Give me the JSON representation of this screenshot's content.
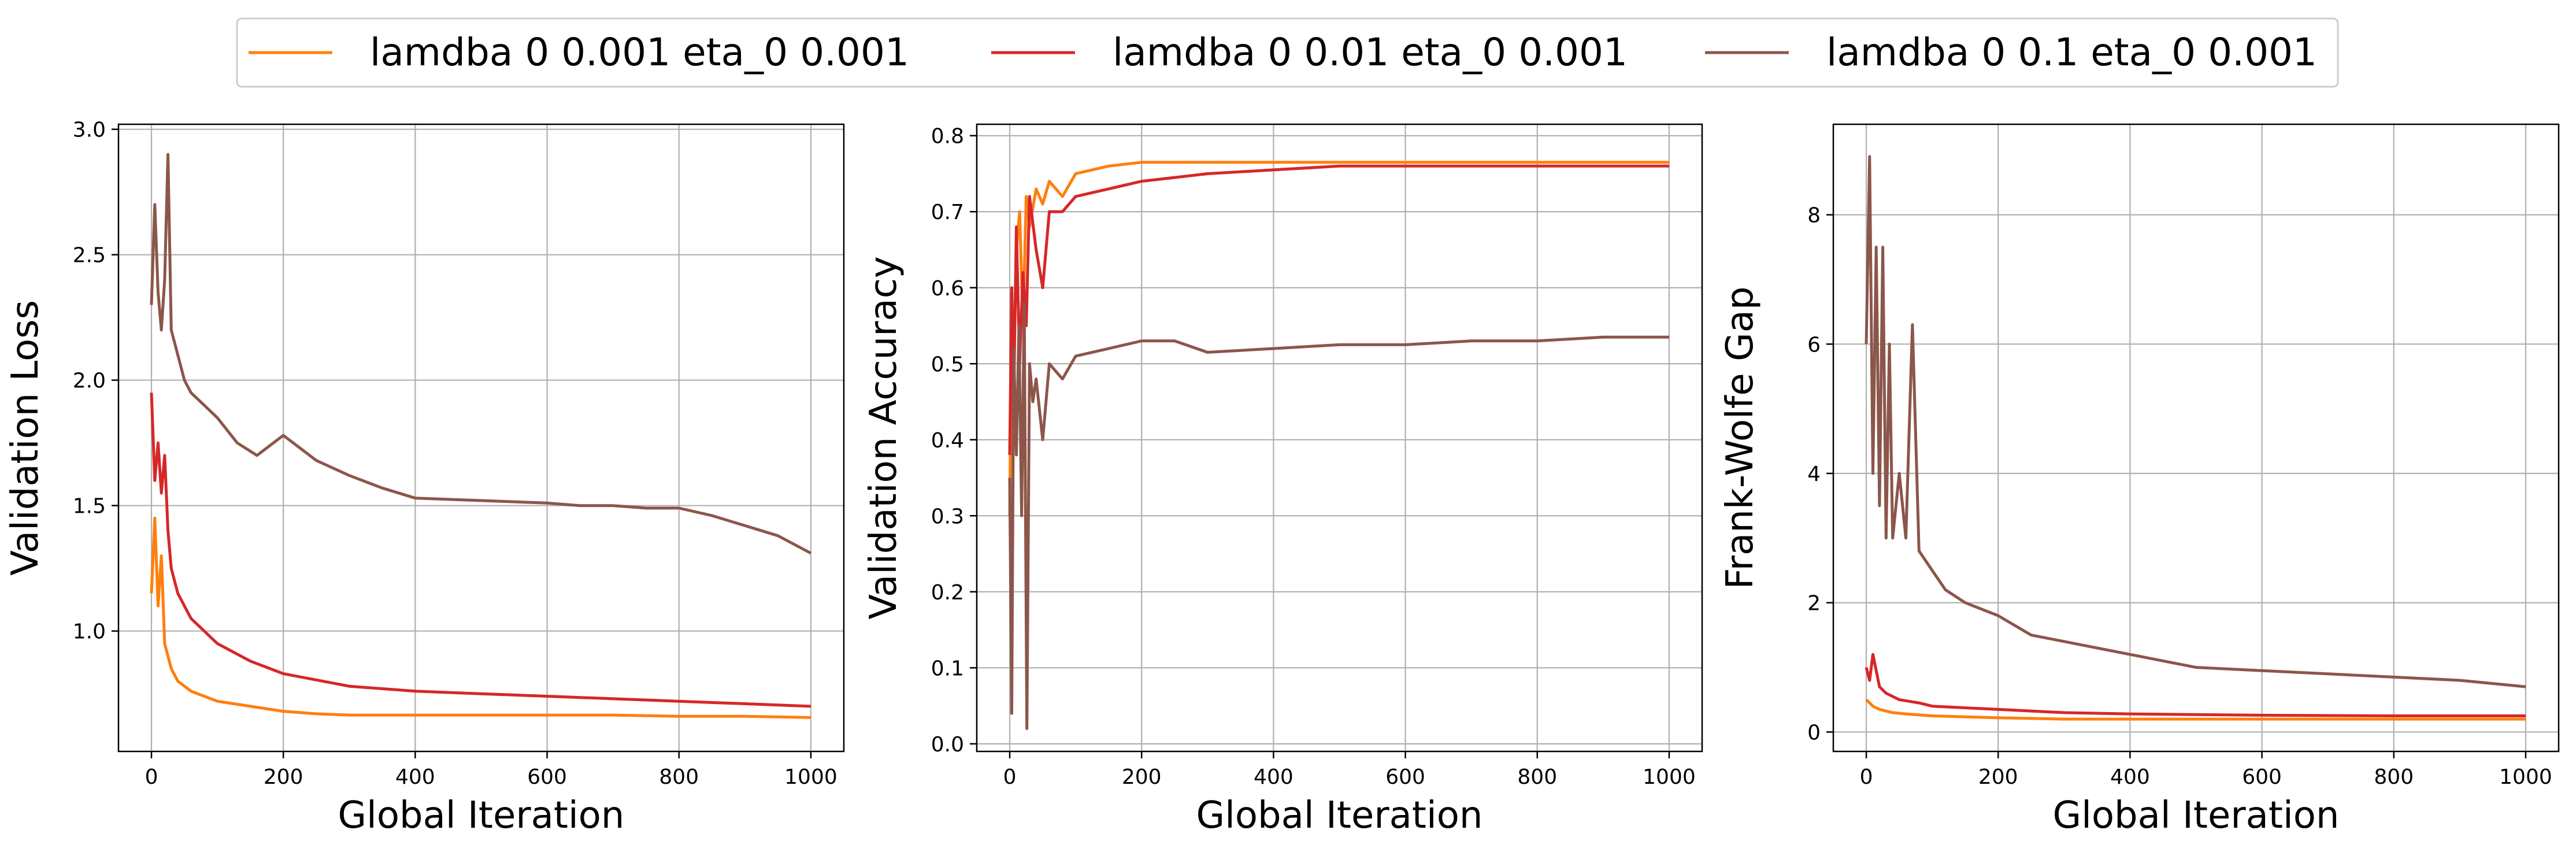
{
  "legend": [
    {
      "label": "lamdba 0 0.001 eta_0 0.001",
      "color": "#ff7f0e"
    },
    {
      "label": "lamdba 0 0.01 eta_0 0.001",
      "color": "#d62728"
    },
    {
      "label": "lamdba 0 0.1 eta_0 0.001",
      "color": "#8c564b"
    }
  ],
  "chart_data": [
    {
      "type": "line",
      "title": "",
      "xlabel": "Global Iteration",
      "ylabel": "Validation Loss",
      "xlim": [
        -50,
        1050
      ],
      "ylim": [
        0.52,
        3.02
      ],
      "xticks": [
        0,
        200,
        400,
        600,
        800,
        1000
      ],
      "xtick_labels": [
        "0",
        "200",
        "400",
        "600",
        "800",
        "1000"
      ],
      "yticks": [
        1.0,
        1.5,
        2.0,
        2.5,
        3.0
      ],
      "ytick_labels": [
        "1.0",
        "1.5",
        "2.0",
        "2.5",
        "3.0"
      ],
      "grid": true,
      "series": [
        {
          "name": "lamdba 0 0.001 eta_0 0.001",
          "color": "#ff7f0e",
          "x": [
            0,
            5,
            10,
            15,
            20,
            30,
            40,
            60,
            80,
            100,
            150,
            200,
            250,
            300,
            400,
            500,
            600,
            700,
            800,
            900,
            1000
          ],
          "y": [
            1.15,
            1.45,
            1.1,
            1.3,
            0.95,
            0.85,
            0.8,
            0.76,
            0.74,
            0.72,
            0.7,
            0.68,
            0.67,
            0.665,
            0.665,
            0.665,
            0.665,
            0.665,
            0.66,
            0.66,
            0.655
          ]
        },
        {
          "name": "lamdba 0 0.01 eta_0 0.001",
          "color": "#d62728",
          "x": [
            0,
            5,
            10,
            15,
            20,
            25,
            30,
            40,
            50,
            60,
            80,
            100,
            150,
            200,
            300,
            400,
            500,
            600,
            700,
            800,
            900,
            1000
          ],
          "y": [
            1.95,
            1.6,
            1.75,
            1.55,
            1.7,
            1.4,
            1.25,
            1.15,
            1.1,
            1.05,
            1.0,
            0.95,
            0.88,
            0.83,
            0.78,
            0.76,
            0.75,
            0.74,
            0.73,
            0.72,
            0.71,
            0.7
          ]
        },
        {
          "name": "lamdba 0 0.1 eta_0 0.001",
          "color": "#8c564b",
          "x": [
            0,
            5,
            10,
            15,
            20,
            25,
            30,
            40,
            50,
            60,
            80,
            100,
            130,
            160,
            200,
            250,
            300,
            350,
            400,
            500,
            600,
            650,
            700,
            750,
            800,
            850,
            900,
            950,
            1000
          ],
          "y": [
            2.3,
            2.7,
            2.35,
            2.2,
            2.4,
            2.9,
            2.2,
            2.1,
            2.0,
            1.95,
            1.9,
            1.85,
            1.75,
            1.7,
            1.78,
            1.68,
            1.62,
            1.57,
            1.53,
            1.52,
            1.51,
            1.5,
            1.5,
            1.49,
            1.49,
            1.46,
            1.42,
            1.38,
            1.31
          ]
        }
      ]
    },
    {
      "type": "line",
      "title": "",
      "xlabel": "Global Iteration",
      "ylabel": "Validation Accuracy",
      "xlim": [
        -50,
        1050
      ],
      "ylim": [
        -0.01,
        0.815
      ],
      "xticks": [
        0,
        200,
        400,
        600,
        800,
        1000
      ],
      "xtick_labels": [
        "0",
        "200",
        "400",
        "600",
        "800",
        "1000"
      ],
      "yticks": [
        0.0,
        0.1,
        0.2,
        0.3,
        0.4,
        0.5,
        0.6,
        0.7,
        0.8
      ],
      "ytick_labels": [
        "0.0",
        "0.1",
        "0.2",
        "0.3",
        "0.4",
        "0.5",
        "0.6",
        "0.7",
        "0.8"
      ],
      "grid": true,
      "series": [
        {
          "name": "lamdba 0 0.001 eta_0 0.001",
          "color": "#ff7f0e",
          "x": [
            0,
            3,
            6,
            10,
            15,
            20,
            25,
            30,
            40,
            50,
            60,
            80,
            100,
            150,
            200,
            300,
            400,
            500,
            600,
            700,
            800,
            900,
            1000
          ],
          "y": [
            0.3,
            0.58,
            0.5,
            0.65,
            0.7,
            0.55,
            0.72,
            0.68,
            0.73,
            0.71,
            0.74,
            0.72,
            0.75,
            0.76,
            0.765,
            0.765,
            0.765,
            0.765,
            0.765,
            0.765,
            0.765,
            0.765,
            0.765
          ]
        },
        {
          "name": "lamdba 0 0.01 eta_0 0.001",
          "color": "#d62728",
          "x": [
            0,
            3,
            6,
            10,
            15,
            20,
            25,
            30,
            40,
            50,
            60,
            80,
            100,
            150,
            200,
            250,
            300,
            400,
            500,
            600,
            700,
            800,
            900,
            1000
          ],
          "y": [
            0.38,
            0.6,
            0.45,
            0.68,
            0.5,
            0.62,
            0.55,
            0.72,
            0.65,
            0.6,
            0.7,
            0.7,
            0.72,
            0.73,
            0.74,
            0.745,
            0.75,
            0.755,
            0.76,
            0.76,
            0.76,
            0.76,
            0.76,
            0.76
          ]
        },
        {
          "name": "lamdba 0 0.1 eta_0 0.001",
          "color": "#8c564b",
          "x": [
            0,
            3,
            6,
            10,
            14,
            18,
            22,
            26,
            30,
            35,
            40,
            50,
            60,
            80,
            100,
            150,
            200,
            250,
            300,
            400,
            500,
            600,
            700,
            800,
            900,
            1000
          ],
          "y": [
            0.35,
            0.04,
            0.52,
            0.38,
            0.55,
            0.3,
            0.58,
            0.02,
            0.5,
            0.45,
            0.48,
            0.4,
            0.5,
            0.48,
            0.51,
            0.52,
            0.53,
            0.53,
            0.515,
            0.52,
            0.525,
            0.525,
            0.53,
            0.53,
            0.535,
            0.535
          ]
        }
      ]
    },
    {
      "type": "line",
      "title": "",
      "xlabel": "Global Iteration",
      "ylabel": "Frank-Wolfe Gap",
      "xlim": [
        -50,
        1050
      ],
      "ylim": [
        -0.3,
        9.4
      ],
      "xticks": [
        0,
        200,
        400,
        600,
        800,
        1000
      ],
      "xtick_labels": [
        "0",
        "200",
        "400",
        "600",
        "800",
        "1000"
      ],
      "yticks": [
        0,
        2,
        4,
        6,
        8
      ],
      "ytick_labels": [
        "0",
        "2",
        "4",
        "6",
        "8"
      ],
      "grid": true,
      "series": [
        {
          "name": "lamdba 0 0.001 eta_0 0.001",
          "color": "#ff7f0e",
          "x": [
            0,
            10,
            20,
            40,
            60,
            100,
            200,
            300,
            400,
            600,
            800,
            1000
          ],
          "y": [
            0.5,
            0.4,
            0.35,
            0.3,
            0.28,
            0.25,
            0.22,
            0.2,
            0.2,
            0.2,
            0.2,
            0.2
          ]
        },
        {
          "name": "lamdba 0 0.01 eta_0 0.001",
          "color": "#d62728",
          "x": [
            0,
            5,
            10,
            20,
            30,
            50,
            80,
            100,
            200,
            300,
            400,
            600,
            800,
            1000
          ],
          "y": [
            1.0,
            0.8,
            1.2,
            0.7,
            0.6,
            0.5,
            0.45,
            0.4,
            0.35,
            0.3,
            0.28,
            0.26,
            0.25,
            0.25
          ]
        },
        {
          "name": "lamdba 0 0.1 eta_0 0.001",
          "color": "#8c564b",
          "x": [
            0,
            5,
            10,
            15,
            20,
            25,
            30,
            35,
            40,
            50,
            60,
            70,
            80,
            100,
            120,
            150,
            200,
            250,
            300,
            400,
            500,
            600,
            700,
            800,
            900,
            1000
          ],
          "y": [
            6.0,
            8.9,
            4.0,
            7.5,
            3.5,
            7.5,
            3.0,
            6.0,
            3.0,
            4.0,
            3.0,
            6.3,
            2.8,
            2.5,
            2.2,
            2.0,
            1.8,
            1.5,
            1.4,
            1.2,
            1.0,
            0.95,
            0.9,
            0.85,
            0.8,
            0.7
          ]
        }
      ]
    }
  ]
}
